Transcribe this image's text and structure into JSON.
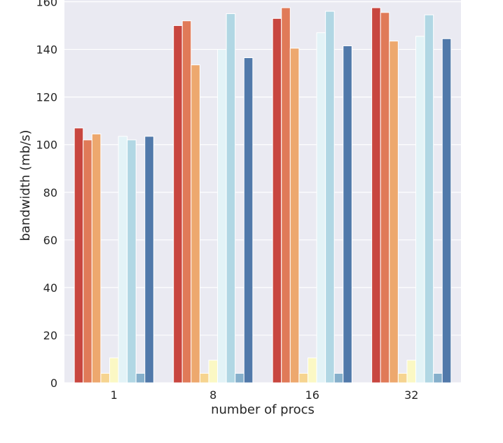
{
  "chart_data": {
    "type": "bar",
    "title": "",
    "xlabel": "number of procs",
    "ylabel": "bandwidth (mb/s)",
    "categories": [
      "1",
      "8",
      "16",
      "32"
    ],
    "ylim": [
      0,
      160
    ],
    "yticks": [
      0,
      20,
      40,
      60,
      80,
      100,
      120,
      140,
      160
    ],
    "grid": true,
    "legend": "none",
    "background_color": "#eaeaf2",
    "series": [
      {
        "color": "#c8463f",
        "values": [
          107,
          150,
          153,
          157.5
        ]
      },
      {
        "color": "#e07a58",
        "values": [
          102,
          152,
          157.5,
          155.5
        ]
      },
      {
        "color": "#eda86e",
        "values": [
          104.5,
          133.5,
          140.5,
          143.5
        ]
      },
      {
        "color": "#f6d490",
        "values": [
          4,
          4,
          4,
          4
        ]
      },
      {
        "color": "#fbf8c4",
        "values": [
          10.5,
          9.5,
          10.5,
          9.5
        ]
      },
      {
        "color": "#e3f3f7",
        "values": [
          103.5,
          140,
          147,
          145.5
        ]
      },
      {
        "color": "#b1d7e4",
        "values": [
          102,
          155,
          156,
          154.5
        ]
      },
      {
        "color": "#85afcb",
        "values": [
          4,
          4,
          4,
          4
        ]
      },
      {
        "color": "#5179aa",
        "values": [
          103.5,
          136.5,
          141.5,
          144.5
        ]
      }
    ]
  }
}
